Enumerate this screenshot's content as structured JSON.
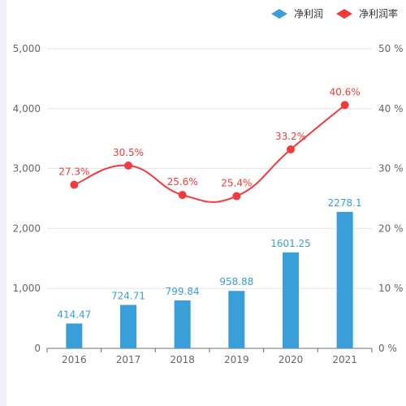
{
  "chart_data": {
    "type": "bar+line",
    "categories": [
      "2016",
      "2017",
      "2018",
      "2019",
      "2020",
      "2021"
    ],
    "series": [
      {
        "name": "净利润",
        "type": "bar",
        "axis": "left",
        "color": "#3a9fd9",
        "values": [
          414.47,
          724.71,
          799.84,
          958.88,
          1601.25,
          2278.1
        ],
        "labels": [
          "414.47",
          "724.71",
          "799.84",
          "958.88",
          "1601.25",
          "2278.1"
        ]
      },
      {
        "name": "净利润率",
        "type": "line",
        "axis": "right",
        "color": "#ef3d3d",
        "values": [
          27.3,
          30.5,
          25.6,
          25.4,
          33.2,
          40.6
        ],
        "labels": [
          "27.3%",
          "30.5%",
          "25.6%",
          "25.4%",
          "33.2%",
          "40.6%"
        ]
      }
    ],
    "y_left": {
      "range": [
        0,
        5000
      ],
      "ticks": [
        0,
        1000,
        2000,
        3000,
        4000,
        5000
      ],
      "tick_labels": [
        "0",
        "1,000",
        "2,000",
        "3,000",
        "4,000",
        "5,000"
      ]
    },
    "y_right": {
      "range": [
        0,
        50
      ],
      "ticks": [
        0,
        10,
        20,
        30,
        40,
        50
      ],
      "tick_labels": [
        "0 %",
        "10 %",
        "20 %",
        "30 %",
        "40 %",
        "50 %"
      ]
    },
    "grid": true,
    "legend_position": "top-right"
  }
}
